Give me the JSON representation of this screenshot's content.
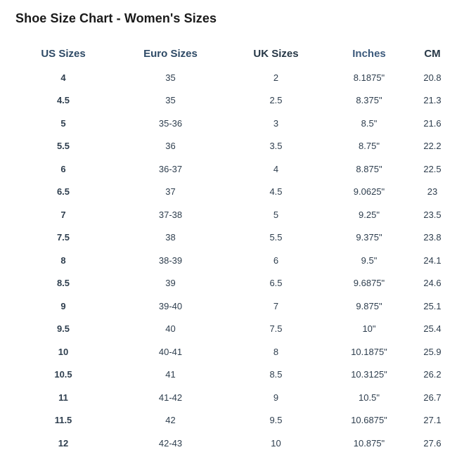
{
  "title": "Shoe Size Chart - Women's Sizes",
  "headers": {
    "us": "US Sizes",
    "euro": "Euro Sizes",
    "uk": "UK Sizes",
    "inches": "Inches",
    "cm": "CM"
  },
  "rows": [
    {
      "us": "4",
      "euro": "35",
      "uk": "2",
      "inches": "8.1875\"",
      "cm": "20.8"
    },
    {
      "us": "4.5",
      "euro": "35",
      "uk": "2.5",
      "inches": "8.375\"",
      "cm": "21.3"
    },
    {
      "us": "5",
      "euro": "35-36",
      "uk": "3",
      "inches": "8.5\"",
      "cm": "21.6"
    },
    {
      "us": "5.5",
      "euro": "36",
      "uk": "3.5",
      "inches": "8.75\"",
      "cm": "22.2"
    },
    {
      "us": "6",
      "euro": "36-37",
      "uk": "4",
      "inches": "8.875\"",
      "cm": "22.5"
    },
    {
      "us": "6.5",
      "euro": "37",
      "uk": "4.5",
      "inches": "9.0625\"",
      "cm": "23"
    },
    {
      "us": "7",
      "euro": "37-38",
      "uk": "5",
      "inches": "9.25\"",
      "cm": "23.5"
    },
    {
      "us": "7.5",
      "euro": "38",
      "uk": "5.5",
      "inches": "9.375\"",
      "cm": "23.8"
    },
    {
      "us": "8",
      "euro": "38-39",
      "uk": "6",
      "inches": "9.5\"",
      "cm": "24.1"
    },
    {
      "us": "8.5",
      "euro": "39",
      "uk": "6.5",
      "inches": "9.6875\"",
      "cm": "24.6"
    },
    {
      "us": "9",
      "euro": "39-40",
      "uk": "7",
      "inches": "9.875\"",
      "cm": "25.1"
    },
    {
      "us": "9.5",
      "euro": "40",
      "uk": "7.5",
      "inches": "10\"",
      "cm": "25.4"
    },
    {
      "us": "10",
      "euro": "40-41",
      "uk": "8",
      "inches": "10.1875\"",
      "cm": "25.9"
    },
    {
      "us": "10.5",
      "euro": "41",
      "uk": "8.5",
      "inches": "10.3125\"",
      "cm": "26.2"
    },
    {
      "us": "11",
      "euro": "41-42",
      "uk": "9",
      "inches": "10.5\"",
      "cm": "26.7"
    },
    {
      "us": "11.5",
      "euro": "42",
      "uk": "9.5",
      "inches": "10.6875\"",
      "cm": "27.1"
    },
    {
      "us": "12",
      "euro": "42-43",
      "uk": "10",
      "inches": "10.875\"",
      "cm": "27.6"
    }
  ]
}
